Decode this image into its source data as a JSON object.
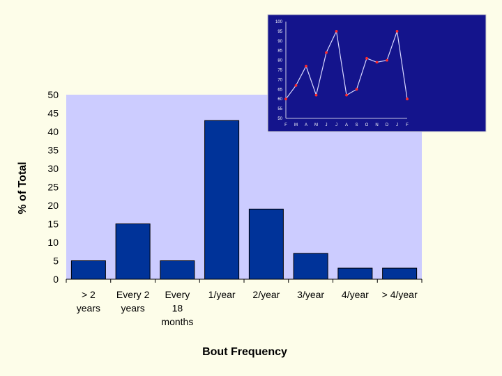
{
  "colors": {
    "background": "#fdfde9",
    "plot_area": "#ccccff",
    "bar_fill": "#003399",
    "inset_background": "#14148c",
    "inset_line": "#d8d8ff",
    "inset_marker": "#ff2a2a"
  },
  "chart_data": [
    {
      "type": "bar",
      "title": "",
      "xlabel": "Bout Frequency",
      "ylabel": "% of Total",
      "ylim": [
        0,
        50
      ],
      "yticks": [
        0,
        5,
        10,
        15,
        20,
        25,
        30,
        35,
        40,
        45,
        50
      ],
      "grid": false,
      "legend": "none",
      "categories": [
        [
          "> 2",
          "years"
        ],
        [
          "Every 2",
          "years"
        ],
        [
          "Every",
          "18",
          "months"
        ],
        [
          "1/year"
        ],
        [
          "2/year"
        ],
        [
          "3/year"
        ],
        [
          "4/year"
        ],
        [
          "> 4/year"
        ]
      ],
      "values": [
        5,
        15,
        5,
        43,
        19,
        7,
        3,
        3
      ]
    },
    {
      "type": "line",
      "title": "",
      "xlabel": "",
      "ylabel": "",
      "ylim": [
        50,
        100
      ],
      "yticks": [
        50,
        55,
        60,
        65,
        70,
        75,
        80,
        85,
        90,
        95,
        100
      ],
      "grid": false,
      "legend": "none",
      "categories": [
        "F",
        "M",
        "A",
        "M",
        "J",
        "J",
        "A",
        "S",
        "O",
        "N",
        "D",
        "J",
        "F"
      ],
      "values": [
        60,
        67,
        77,
        62,
        84,
        95,
        62,
        65,
        81,
        79,
        80,
        95,
        60
      ]
    }
  ]
}
